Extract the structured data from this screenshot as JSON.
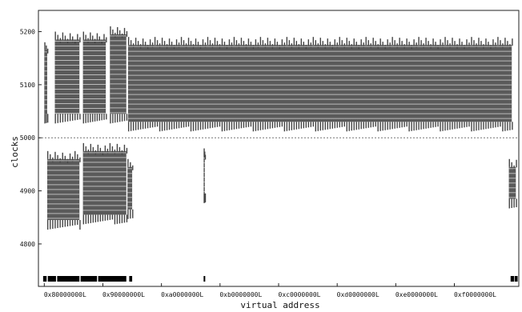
{
  "chart_data": {
    "type": "scatter",
    "xlabel": "virtual address",
    "ylabel": "clocks",
    "ylim": [
      4720,
      5240
    ],
    "grid": false,
    "legend": "none",
    "point_color": "#5a5a5a",
    "threshold": 5000,
    "y_ticks": [
      "4800",
      "4900",
      "5000",
      "5100",
      "5200"
    ],
    "y_tick_values": [
      4800,
      4900,
      5000,
      5100,
      5200
    ],
    "x_ticks": [
      "0x80000000L",
      "0x90000000L",
      "0xa0000000L",
      "0xb0000000L",
      "0xc0000000L",
      "0xd0000000L",
      "0xe0000000L",
      "0xf0000000L"
    ],
    "clusters": [
      {
        "x_start": 0.0,
        "x_end": 0.05,
        "y_low": 5030,
        "y_high": 5180
      },
      {
        "x_start": 0.18,
        "x_end": 0.6,
        "y_low": 5030,
        "y_high": 5200
      },
      {
        "x_start": 0.66,
        "x_end": 1.05,
        "y_low": 5030,
        "y_high": 5200
      },
      {
        "x_start": 1.12,
        "x_end": 1.4,
        "y_low": 5030,
        "y_high": 5210
      },
      {
        "x_start": 1.43,
        "x_end": 7.98,
        "y_low": 5015,
        "y_high": 5190
      },
      {
        "x_start": 0.05,
        "x_end": 0.6,
        "y_low": 4830,
        "y_high": 4975
      },
      {
        "x_start": 0.66,
        "x_end": 1.4,
        "y_low": 4840,
        "y_high": 4990
      },
      {
        "x_start": 1.42,
        "x_end": 1.5,
        "y_low": 4850,
        "y_high": 4960
      },
      {
        "x_start": 2.72,
        "x_end": 2.74,
        "y_low": 4880,
        "y_high": 4980
      },
      {
        "x_start": 7.93,
        "x_end": 8.05,
        "y_low": 4870,
        "y_high": 4960
      }
    ],
    "mapped_ranges": [
      [
        -0.02,
        0.04
      ],
      [
        0.06,
        0.2
      ],
      [
        0.22,
        0.6
      ],
      [
        0.62,
        0.9
      ],
      [
        0.92,
        1.4
      ],
      [
        1.45,
        1.5
      ],
      [
        2.72,
        2.74
      ],
      [
        7.96,
        8.02
      ],
      [
        8.03,
        8.08
      ]
    ]
  }
}
